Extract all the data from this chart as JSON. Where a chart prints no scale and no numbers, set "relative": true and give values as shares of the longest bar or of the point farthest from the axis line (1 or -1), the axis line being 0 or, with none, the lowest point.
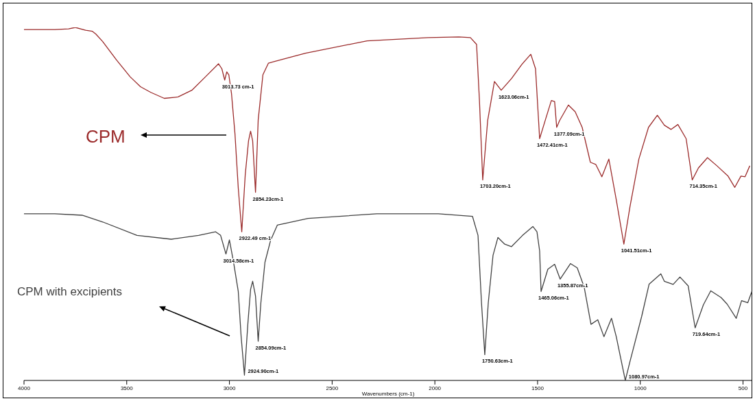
{
  "chart_data": {
    "type": "line",
    "relative": true,
    "xlabel": "Wavenumbers (cm-1)",
    "xlim": [
      4000,
      455
    ],
    "xticks": [
      4000,
      3500,
      3000,
      2500,
      2000,
      1500,
      1000,
      500
    ],
    "tick_labels": "x",
    "legend": false,
    "series": [
      {
        "name": "CPM",
        "color": "#9b2a2a",
        "x": [
          4000,
          3850,
          3783,
          3750,
          3700,
          3667,
          3650,
          3617,
          3550,
          3483,
          3433,
          3383,
          3317,
          3250,
          3183,
          3117,
          3053,
          3037,
          3023,
          3013,
          3003,
          2990,
          2973,
          2957,
          2940,
          2923,
          2907,
          2897,
          2887,
          2873,
          2860,
          2837,
          2810,
          2777,
          2630,
          2330,
          2033,
          1883,
          1827,
          1797,
          1783,
          1767,
          1743,
          1710,
          1677,
          1627,
          1577,
          1533,
          1510,
          1490,
          1460,
          1433,
          1417,
          1407,
          1393,
          1350,
          1317,
          1283,
          1243,
          1217,
          1187,
          1153,
          1117,
          1080,
          1050,
          1007,
          960,
          917,
          883,
          850,
          817,
          777,
          747,
          717,
          673,
          627,
          573,
          540,
          510,
          490,
          467
        ],
        "values": [
          0.994,
          0.994,
          0.996,
          1.0,
          0.992,
          0.989,
          0.981,
          0.96,
          0.908,
          0.86,
          0.832,
          0.816,
          0.799,
          0.803,
          0.822,
          0.86,
          0.897,
          0.883,
          0.851,
          0.874,
          0.866,
          0.813,
          0.698,
          0.545,
          0.421,
          0.583,
          0.679,
          0.706,
          0.679,
          0.533,
          0.738,
          0.866,
          0.899,
          0.904,
          0.927,
          0.962,
          0.971,
          0.973,
          0.971,
          0.952,
          0.793,
          0.568,
          0.736,
          0.847,
          0.822,
          0.855,
          0.895,
          0.924,
          0.883,
          0.685,
          0.742,
          0.793,
          0.79,
          0.717,
          0.736,
          0.78,
          0.761,
          0.717,
          0.618,
          0.612,
          0.577,
          0.627,
          0.512,
          0.386,
          0.493,
          0.627,
          0.717,
          0.751,
          0.723,
          0.711,
          0.725,
          0.685,
          0.568,
          0.602,
          0.631,
          0.608,
          0.579,
          0.547,
          0.579,
          0.577,
          0.608
        ]
      },
      {
        "name": "CPM with excipients",
        "color": "#404040",
        "x": [
          4000,
          3850,
          3717,
          3617,
          3450,
          3283,
          3150,
          3067,
          3043,
          3017,
          3000,
          2980,
          2957,
          2943,
          2927,
          2910,
          2897,
          2887,
          2873,
          2860,
          2847,
          2827,
          2800,
          2767,
          2617,
          2283,
          1983,
          1817,
          1790,
          1773,
          1757,
          1740,
          1717,
          1693,
          1660,
          1627,
          1573,
          1523,
          1503,
          1490,
          1483,
          1450,
          1417,
          1390,
          1340,
          1307,
          1273,
          1240,
          1207,
          1177,
          1140,
          1117,
          1073,
          1050,
          993,
          957,
          900,
          883,
          840,
          807,
          767,
          733,
          693,
          657,
          607,
          577,
          533,
          507,
          477,
          457
        ],
        "values": [
          0.472,
          0.472,
          0.468,
          0.449,
          0.411,
          0.4,
          0.411,
          0.421,
          0.411,
          0.358,
          0.398,
          0.335,
          0.252,
          0.124,
          0.015,
          0.163,
          0.258,
          0.281,
          0.239,
          0.111,
          0.22,
          0.335,
          0.396,
          0.44,
          0.459,
          0.472,
          0.472,
          0.465,
          0.411,
          0.22,
          0.073,
          0.22,
          0.354,
          0.405,
          0.386,
          0.379,
          0.411,
          0.436,
          0.421,
          0.367,
          0.252,
          0.315,
          0.329,
          0.287,
          0.331,
          0.319,
          0.264,
          0.159,
          0.172,
          0.124,
          0.176,
          0.124,
          0.0,
          0.054,
          0.182,
          0.273,
          0.302,
          0.281,
          0.272,
          0.293,
          0.268,
          0.149,
          0.214,
          0.254,
          0.235,
          0.216,
          0.176,
          0.226,
          0.22,
          0.252
        ]
      }
    ],
    "annotations": [
      {
        "text": "3013.73 cm-1",
        "x": 3023,
        "y": 0.851
      },
      {
        "text": "2922.49 cm-1",
        "x": 2940,
        "y": 0.421
      },
      {
        "text": "2854.23cm-1",
        "x": 2873,
        "y": 0.533
      },
      {
        "text": "1703.20cm-1",
        "x": 1767,
        "y": 0.568
      },
      {
        "text": "1623.06cm-1",
        "x": 1677,
        "y": 0.822
      },
      {
        "text": "1472.41cm-1",
        "x": 1490,
        "y": 0.685
      },
      {
        "text": "1377.09cm-1",
        "x": 1407,
        "y": 0.717
      },
      {
        "text": "1041.51cm-1",
        "x": 1080,
        "y": 0.386
      },
      {
        "text": "714.35cm-1",
        "x": 747,
        "y": 0.568
      },
      {
        "text": "3014.58cm-1",
        "x": 3017,
        "y": 0.358
      },
      {
        "text": "2924.90cm-1",
        "x": 2927,
        "y": 0.015
      },
      {
        "text": "2854.09cm-1",
        "x": 2860,
        "y": 0.111
      },
      {
        "text": "1750.63cm-1",
        "x": 1757,
        "y": 0.073
      },
      {
        "text": "1465.06cm-1",
        "x": 1483,
        "y": 0.252
      },
      {
        "text": "1355.87cm-1",
        "x": 1390,
        "y": 0.287
      },
      {
        "text": "1080.97cm-1",
        "x": 1073,
        "y": 0.0
      },
      {
        "text": "719.64cm-1",
        "x": 733,
        "y": 0.149
      }
    ]
  }
}
